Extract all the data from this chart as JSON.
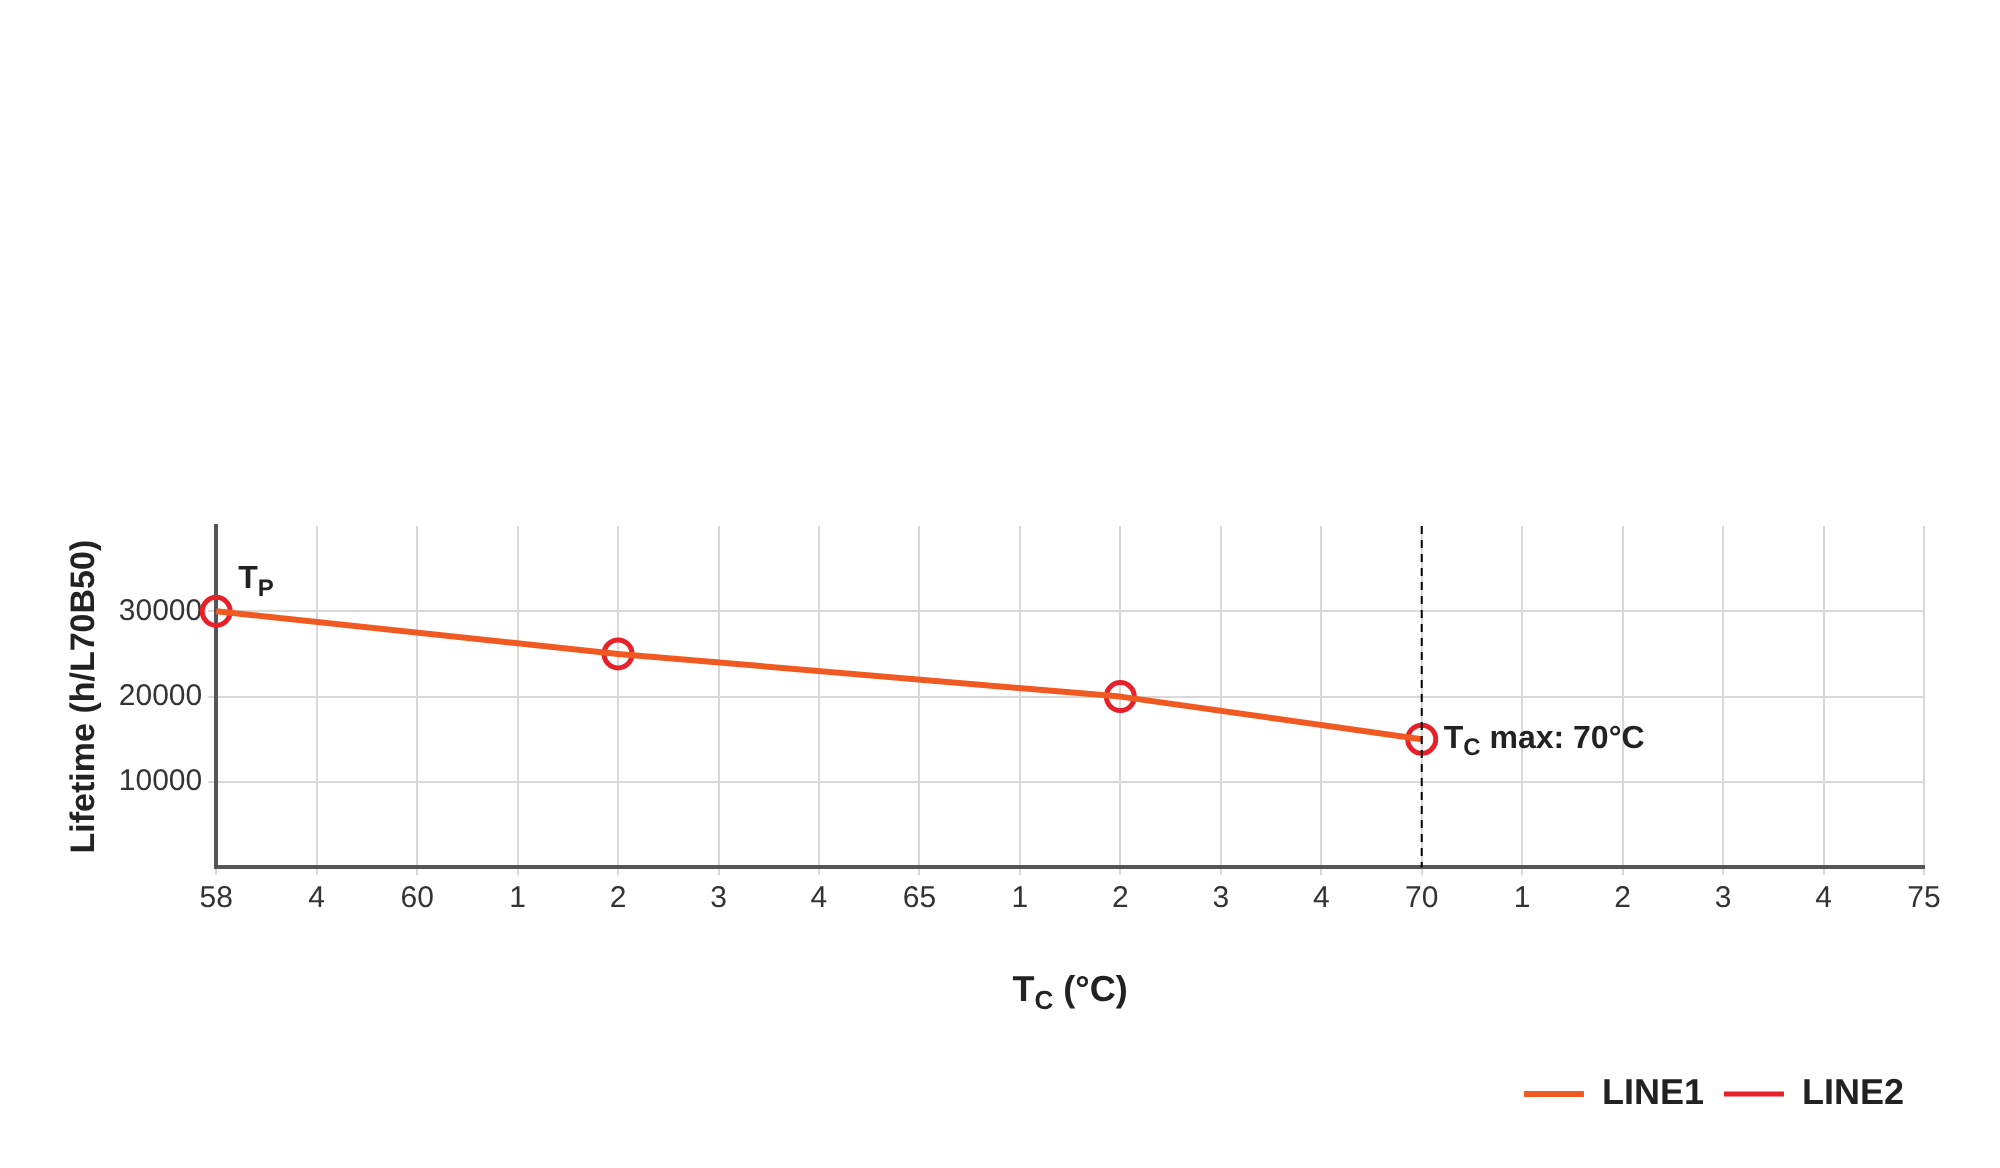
{
  "chart_data": {
    "type": "line",
    "xlabel": "T$_{C}$ (°C)",
    "ylabel": "Lifetime (h/L70B50)",
    "categories": [
      "58",
      "4",
      "60",
      "1",
      "2",
      "3",
      "4",
      "65",
      "1",
      "2",
      "3",
      "4",
      "70",
      "1",
      "2",
      "3",
      "4",
      "75"
    ],
    "series": [
      {
        "name": "LINE1",
        "color": "#f05a22",
        "values": [
          30000,
          null,
          null,
          null,
          25000,
          null,
          null,
          null,
          null,
          20000,
          null,
          null,
          15000,
          null,
          null,
          null,
          null,
          null
        ]
      },
      {
        "name": "LINE2",
        "type": "scatter",
        "marker": "circle",
        "color": "#e8202a",
        "values": [
          30000,
          null,
          null,
          null,
          25000,
          null,
          null,
          null,
          null,
          20000,
          null,
          null,
          15000,
          null,
          null,
          null,
          null,
          null
        ]
      }
    ],
    "ylim": [
      0,
      40000
    ],
    "yticks": [
      10000,
      20000,
      30000
    ],
    "grid": true,
    "legend": "bottom right",
    "ref_lines": [
      {
        "axis": "x",
        "value": "70",
        "color": "#000000",
        "line_style": "dashed"
      }
    ],
    "annotations": [
      {
        "text": "T$_{P}$",
        "x": "58",
        "y": 30000
      },
      {
        "text": "T$_{C}$ max: 70°C",
        "x": "70",
        "y": 15000
      }
    ]
  }
}
